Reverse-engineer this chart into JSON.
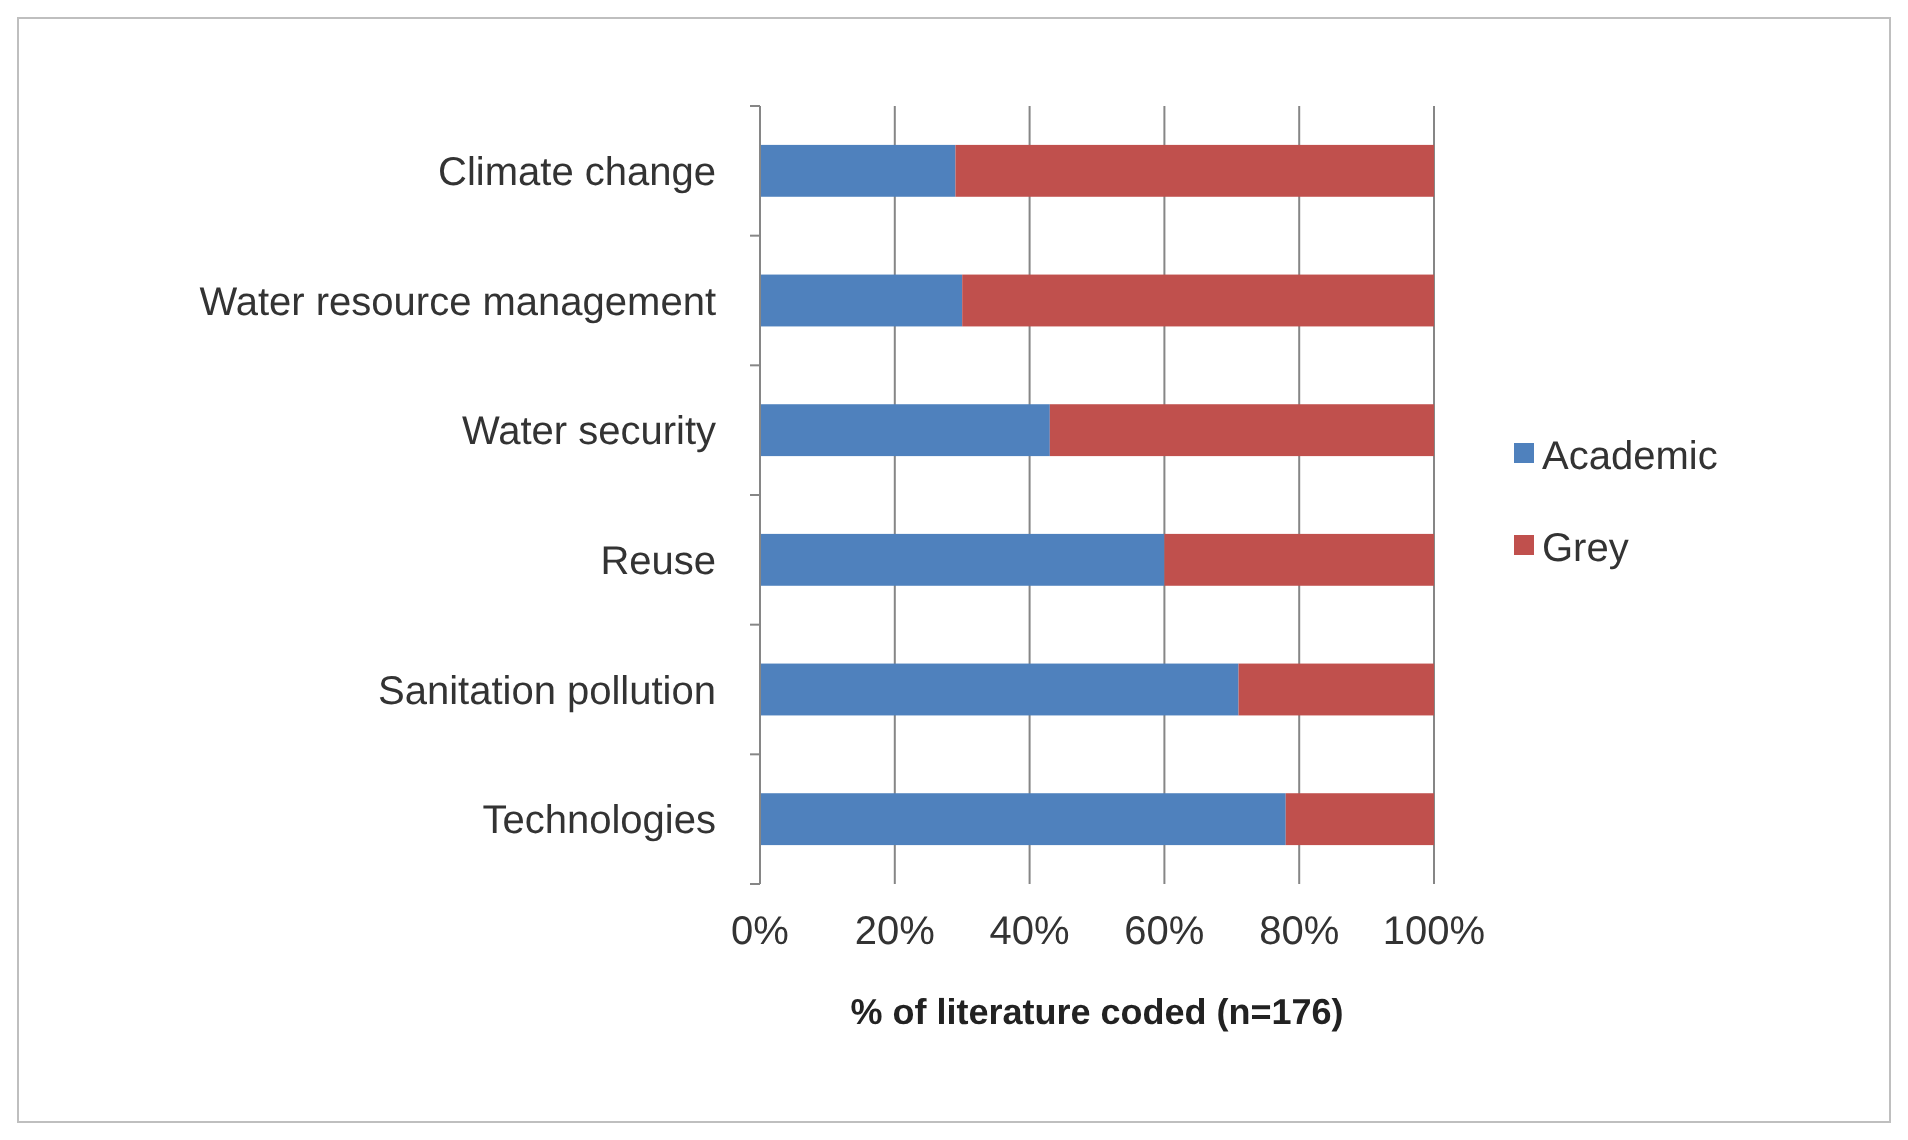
{
  "chart_data": {
    "type": "bar",
    "orientation": "horizontal",
    "stacked": true,
    "xlabel": "% of literature coded (n=176)",
    "categories": [
      "Climate change",
      "Water resource management",
      "Water security",
      "Reuse",
      "Sanitation pollution",
      "Technologies"
    ],
    "series": [
      {
        "name": "Academic",
        "color": "#4f81bd",
        "values": [
          29,
          30,
          43,
          60,
          71,
          78
        ]
      },
      {
        "name": "Grey",
        "color": "#c0504d",
        "values": [
          71,
          70,
          57,
          40,
          29,
          22
        ]
      }
    ],
    "xlim": [
      0,
      100
    ],
    "xticks": [
      {
        "value": 0,
        "label": "0%"
      },
      {
        "value": 20,
        "label": "20%"
      },
      {
        "value": 40,
        "label": "40%"
      },
      {
        "value": 60,
        "label": "60%"
      },
      {
        "value": 80,
        "label": "80%"
      },
      {
        "value": 100,
        "label": "100%"
      }
    ],
    "grid": "x",
    "legend": "right"
  }
}
